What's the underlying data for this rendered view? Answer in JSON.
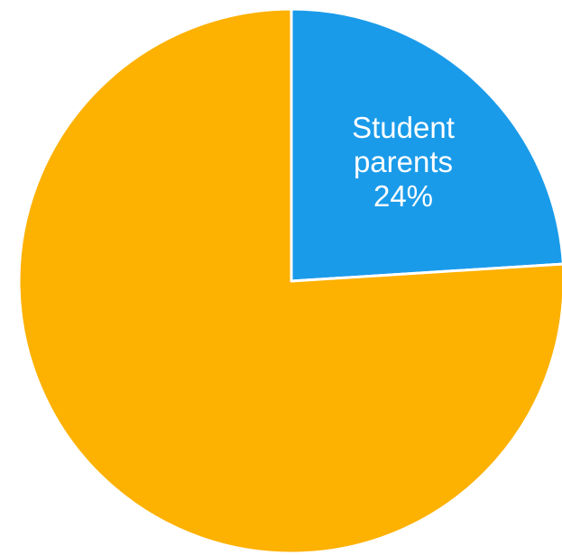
{
  "chart_data": {
    "type": "pie",
    "title": "",
    "slices": [
      {
        "name": "Student parents",
        "label_lines": [
          "Student",
          "parents",
          "24%"
        ],
        "value": 24,
        "color": "#1a9bea"
      },
      {
        "name": "",
        "label_lines": [],
        "value": 76,
        "color": "#fdb100"
      }
    ],
    "start_angle_deg": 0,
    "direction": "clockwise",
    "legend": "none"
  }
}
